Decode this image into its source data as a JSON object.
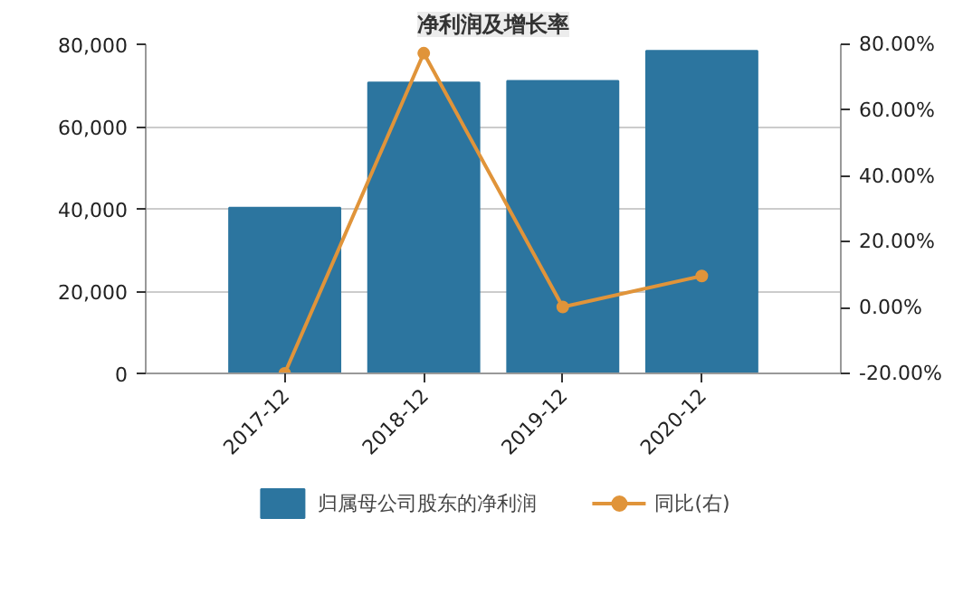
{
  "chart_data": {
    "type": "bar",
    "title": "净利润及增长率",
    "categories": [
      "2017-12",
      "2018-12",
      "2019-12",
      "2020-12"
    ],
    "series": [
      {
        "name": "归属母公司股东的净利润",
        "color": "#2c759f",
        "values": [
          40300,
          70700,
          71100,
          78400
        ]
      },
      {
        "name": "同比(右)",
        "type": "line",
        "axis": "y2",
        "color": "#e0943a",
        "values": [
          -20,
          77.3,
          0.2,
          9.6
        ]
      }
    ],
    "ylim": [
      0,
      80000
    ],
    "yticks": [
      {
        "value": 0,
        "label": "0"
      },
      {
        "value": 20000,
        "label": "20,000"
      },
      {
        "value": 40000,
        "label": "40,000"
      },
      {
        "value": 60000,
        "label": "60,000"
      },
      {
        "value": 80000,
        "label": "80,000"
      }
    ],
    "y2lim": [
      -20,
      80
    ],
    "y2ticks": [
      {
        "value": -20,
        "label": "-20.00%"
      },
      {
        "value": 0,
        "label": "0.00%"
      },
      {
        "value": 20,
        "label": "20.00%"
      },
      {
        "value": 40,
        "label": "40.00%"
      },
      {
        "value": 60,
        "label": "60.00%"
      },
      {
        "value": 80,
        "label": "80.00%"
      }
    ],
    "grid": "y",
    "legend": "bottom",
    "marker": "circle"
  }
}
